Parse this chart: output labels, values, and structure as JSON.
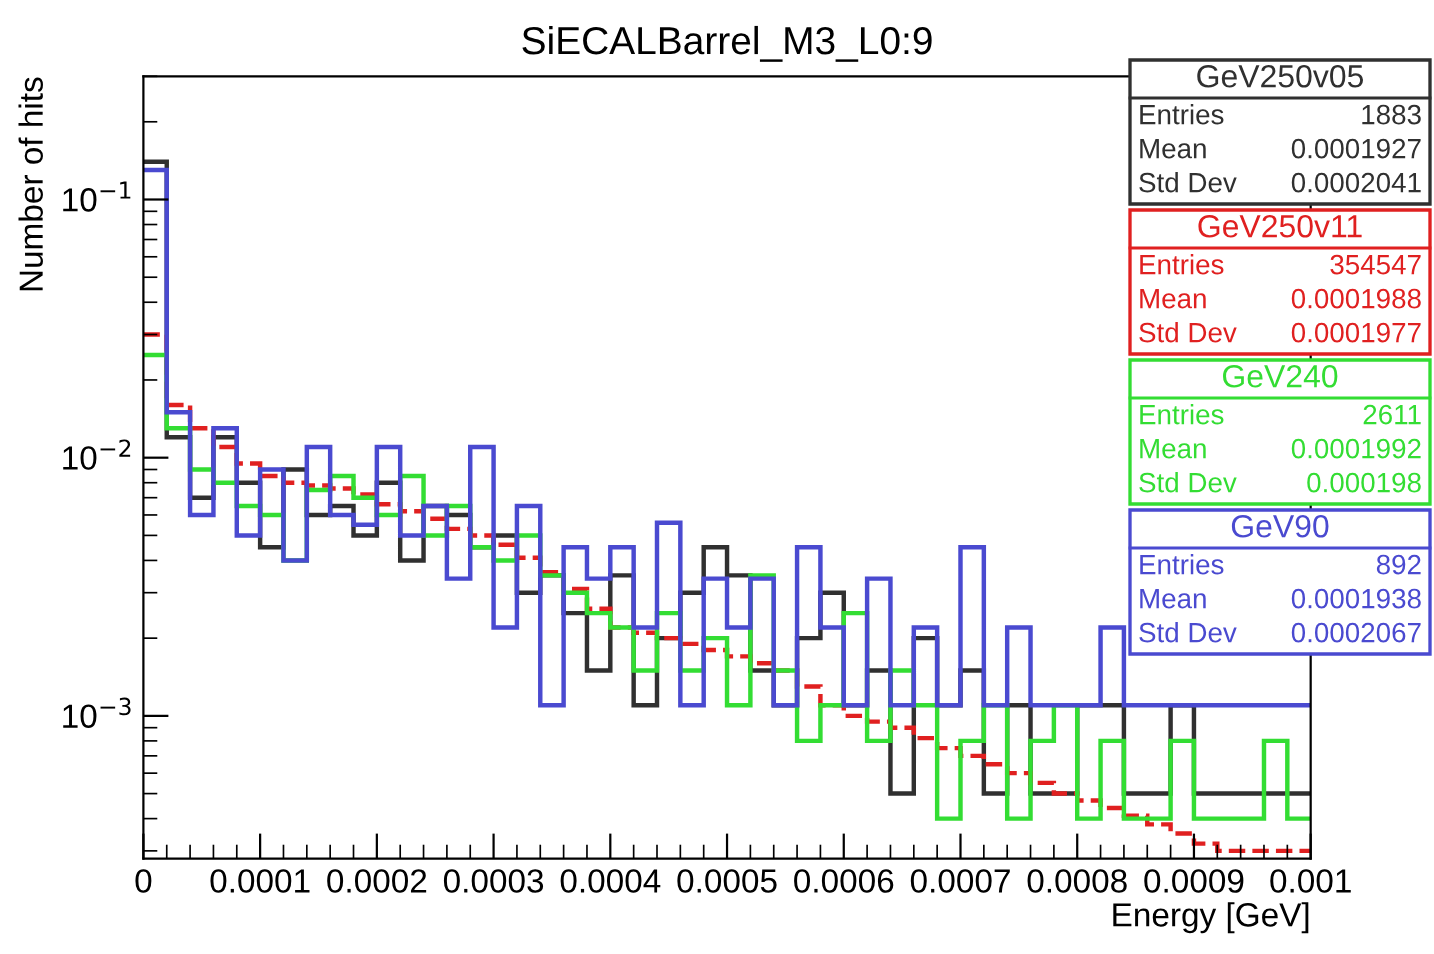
{
  "chart_data": {
    "type": "histogram",
    "title": "SiECALBarrel_M3_L0:9",
    "xlabel": "Energy [GeV]",
    "ylabel": "Number of hits",
    "bins": [
      0,
      2e-05,
      4e-05,
      6e-05,
      8e-05,
      0.0001,
      0.00012,
      0.00014,
      0.00016,
      0.00018,
      0.0002,
      0.00022,
      0.00024,
      0.00026,
      0.00028,
      0.0003,
      0.00032,
      0.00034,
      0.00036,
      0.00038,
      0.0004,
      0.00042,
      0.00044,
      0.00046,
      0.00048,
      0.0005,
      0.00052,
      0.00054,
      0.00056,
      0.00058,
      0.0006,
      0.00062,
      0.00064,
      0.00066,
      0.00068,
      0.0007,
      0.00072,
      0.00074,
      0.00076,
      0.00078,
      0.0008,
      0.00082,
      0.00084,
      0.00086,
      0.00088,
      0.0009,
      0.00092,
      0.00094,
      0.00096,
      0.00098,
      0.001
    ],
    "series": [
      {
        "name": "GeV250v05",
        "color": "#303030",
        "values": [
          0.14,
          0.012,
          0.007,
          0.012,
          0.008,
          0.0045,
          0.009,
          0.006,
          0.0065,
          0.005,
          0.008,
          0.004,
          0.0065,
          0.006,
          0.0045,
          0.005,
          0.003,
          0.0035,
          0.0025,
          0.0015,
          0.0035,
          0.0011,
          0.002,
          0.003,
          0.0045,
          0.0035,
          0.0015,
          0.0011,
          0.002,
          0.003,
          0.0011,
          0.0015,
          0.0005,
          0.002,
          0.0011,
          0.0015,
          0.0005,
          0.0011,
          0.0005,
          0.0005,
          0.0011,
          0.0011,
          0.0005,
          0.0005,
          0.0011,
          0.0005,
          0.0005,
          0.0005,
          0.0005,
          0.0005
        ]
      },
      {
        "name": "GeV250v11",
        "color": "#e02020",
        "line_style": "dashed",
        "values": [
          0.03,
          0.016,
          0.013,
          0.011,
          0.0095,
          0.0085,
          0.008,
          0.0078,
          0.0076,
          0.0072,
          0.0066,
          0.0062,
          0.0058,
          0.0053,
          0.005,
          0.0046,
          0.0041,
          0.0036,
          0.0031,
          0.0026,
          0.0022,
          0.0021,
          0.002,
          0.0019,
          0.0018,
          0.0017,
          0.0016,
          0.0015,
          0.0013,
          0.0011,
          0.001,
          0.00095,
          0.0009,
          0.00082,
          0.00075,
          0.0007,
          0.00065,
          0.0006,
          0.00055,
          0.0005,
          0.00047,
          0.00044,
          0.00041,
          0.00038,
          0.00035,
          0.00032,
          0.0003,
          0.0003,
          0.0003,
          0.0003
        ]
      },
      {
        "name": "GeV240",
        "color": "#33dd33",
        "values": [
          0.025,
          0.013,
          0.009,
          0.008,
          0.0065,
          0.006,
          0.004,
          0.0075,
          0.0085,
          0.007,
          0.006,
          0.0085,
          0.005,
          0.0065,
          0.0045,
          0.004,
          0.005,
          0.0035,
          0.003,
          0.0025,
          0.0022,
          0.0015,
          0.0025,
          0.0015,
          0.002,
          0.0011,
          0.0035,
          0.0015,
          0.0008,
          0.0011,
          0.0025,
          0.0008,
          0.0015,
          0.0011,
          0.0004,
          0.0008,
          0.0011,
          0.0004,
          0.0008,
          0.0011,
          0.0004,
          0.0008,
          0.0004,
          0.0004,
          0.0008,
          0.0004,
          0.0004,
          0.0004,
          0.0008,
          0.0004
        ]
      },
      {
        "name": "GeV90",
        "color": "#4a4ad0",
        "values": [
          0.13,
          0.015,
          0.006,
          0.013,
          0.005,
          0.009,
          0.004,
          0.011,
          0.006,
          0.0055,
          0.011,
          0.005,
          0.0065,
          0.0034,
          0.011,
          0.0022,
          0.0065,
          0.0011,
          0.0045,
          0.0034,
          0.0045,
          0.0022,
          0.0056,
          0.0011,
          0.0034,
          0.0022,
          0.0034,
          0.0011,
          0.0045,
          0.0022,
          0.0011,
          0.0034,
          0.0011,
          0.0022,
          0.0011,
          0.0045,
          0.0011,
          0.0022,
          0.0011,
          0.0011,
          0.0011,
          0.0022,
          0.0011,
          0.0011,
          0.0011,
          0.0011,
          0.0011,
          0.0011,
          0.0011,
          0.0011
        ]
      }
    ],
    "annotations": [
      "Entries 1883",
      "Mean 0.0001927",
      "Std Dev 0.0002041",
      "Entries 354547",
      "Mean 0.0001988",
      "Std Dev 0.0001977",
      "Entries 2611",
      "Mean 0.0001992",
      "Std Dev 0.000198",
      "Entries 892",
      "Mean 0.0001938",
      "Std Dev 0.0002067"
    ],
    "log": "y",
    "xlim": [
      0,
      0.001
    ],
    "ylim": [
      0.00028,
      0.3
    ],
    "xticks": [
      0,
      0.0001,
      0.0002,
      0.0003,
      0.0004,
      0.0005,
      0.0006,
      0.0007,
      0.0008,
      0.0009,
      0.001
    ],
    "yticks": [
      {
        "value": 0.001,
        "label": "10$^{−3}$"
      },
      {
        "value": 0.01,
        "label": "10$^{−2}$"
      },
      {
        "value": 0.1,
        "label": "10$^{−1}$"
      }
    ],
    "grid": false,
    "legend": "top right"
  }
}
